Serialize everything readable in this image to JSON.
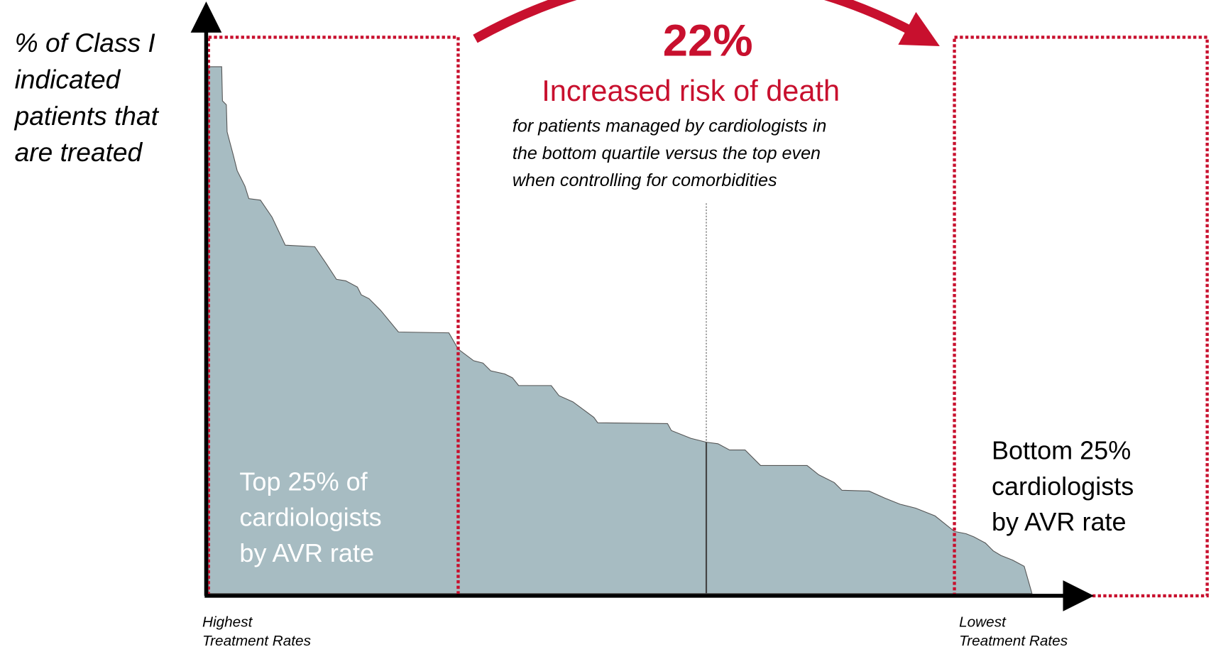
{
  "y_axis_label": [
    "% of Class I",
    "indicated",
    "patients that",
    "are treated"
  ],
  "headline": {
    "value": "22%",
    "title": "Increased risk of death",
    "detail": [
      "for patients managed by cardiologists in",
      "the bottom quartile versus the top even",
      "when controlling for comorbidities"
    ]
  },
  "top_box": [
    "Top 25% of",
    "cardiologists",
    "by AVR rate"
  ],
  "bottom_box": [
    "Bottom 25%",
    "cardiologists",
    "by AVR rate"
  ],
  "x_left": [
    "Highest",
    "Treatment Rates"
  ],
  "x_right": [
    "Lowest",
    "Treatment Rates"
  ]
}
